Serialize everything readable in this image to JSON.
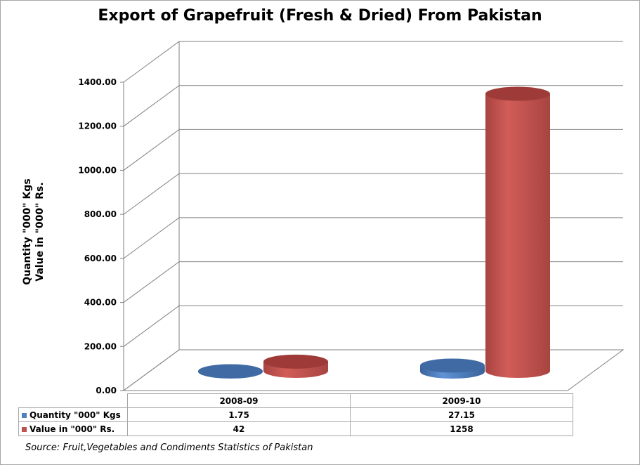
{
  "chart_data": {
    "type": "bar",
    "title": "Export of Grapefruit (Fresh & Dried) From Pakistan",
    "ylabel_line1": "Quantity \"000\" Kgs",
    "ylabel_line2": "Value in \"000\" Rs.",
    "ylim": [
      0,
      1400
    ],
    "yticks": [
      "0.00",
      "200.00",
      "400.00",
      "600.00",
      "800.00",
      "1000.00",
      "1200.00",
      "1400.00"
    ],
    "categories": [
      "2008-09",
      "2009-10"
    ],
    "series": [
      {
        "name": "Quantity \"000\" Kgs",
        "values": [
          1.75,
          27.15
        ],
        "values_text": [
          "1.75",
          "27.15"
        ],
        "color": "#4f81bd"
      },
      {
        "name": "Value in \"000\" Rs.",
        "values": [
          42,
          1258
        ],
        "values_text": [
          "42",
          "1258"
        ],
        "color": "#c0504d"
      }
    ],
    "grid": true,
    "legend": "data-table"
  },
  "source": "Source: Fruit,Vegetables and Condiments Statistics of Pakistan"
}
